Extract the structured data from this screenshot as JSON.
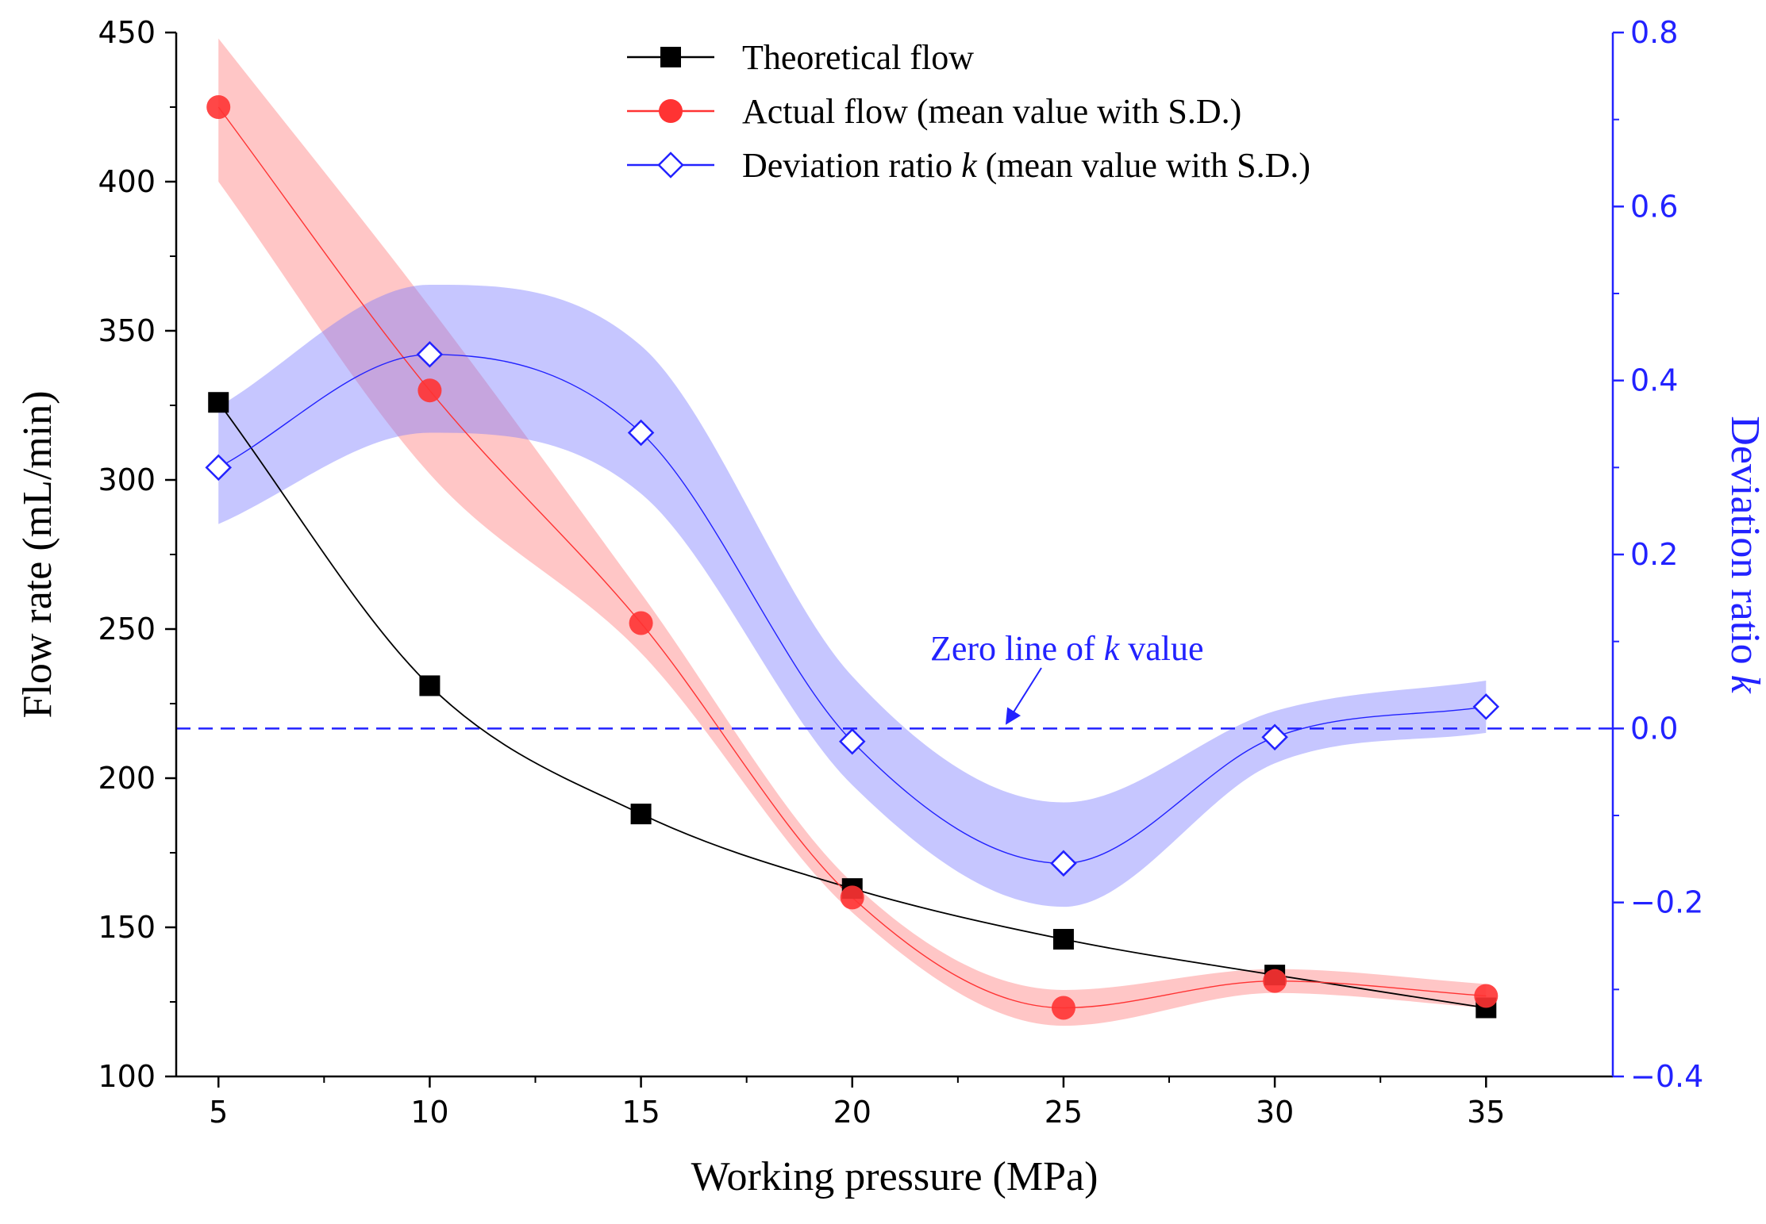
{
  "chart_data": {
    "type": "line",
    "x": [
      5,
      10,
      15,
      20,
      25,
      30,
      35
    ],
    "xlabel": "Working pressure (MPa)",
    "ylabel": "Flow rate (mL/min)",
    "y2label_main": "Deviation ratio ",
    "y2label_italic": "k",
    "xlim": [
      4,
      38
    ],
    "ylim": [
      100,
      450
    ],
    "y2lim": [
      -0.4,
      0.8
    ],
    "x_ticks": [
      5,
      10,
      15,
      20,
      25,
      30,
      35
    ],
    "y_ticks": [
      100,
      150,
      200,
      250,
      300,
      350,
      400,
      450
    ],
    "y2_ticks": [
      -0.4,
      -0.2,
      0.0,
      0.2,
      0.4,
      0.6,
      0.8
    ],
    "y_tick_labels": [
      "100",
      "150",
      "200",
      "250",
      "300",
      "350",
      "400",
      "450"
    ],
    "y2_tick_labels": [
      "−0.4",
      "−0.2",
      "0.0",
      "0.2",
      "0.4",
      "0.6",
      "0.8"
    ],
    "series": [
      {
        "name": "Theoretical flow",
        "axis": "left",
        "color": "#000000",
        "marker": "square",
        "values": [
          326,
          231,
          188,
          163,
          146,
          134,
          123
        ]
      },
      {
        "name": "Actual flow (mean value with S.D.)",
        "axis": "left",
        "color": "#ff3333",
        "band_color": "#ff7777",
        "marker": "circle",
        "values": [
          425,
          330,
          252,
          160,
          123,
          132,
          127
        ],
        "band_lower": [
          400,
          302,
          242,
          155,
          117,
          128,
          123
        ],
        "band_upper": [
          448,
          358,
          262,
          165,
          129,
          136,
          131
        ]
      },
      {
        "name": "Deviation ratio k (mean value with S.D.)",
        "legend_main": "Deviation ratio ",
        "legend_italic": "k",
        "legend_tail": " (mean value with S.D.)",
        "axis": "right",
        "color": "#2222ff",
        "band_color": "#7777ff",
        "marker": "diamond",
        "values": [
          0.3,
          0.43,
          0.34,
          -0.015,
          -0.155,
          -0.01,
          0.025
        ],
        "band_lower": [
          0.235,
          0.34,
          0.27,
          -0.065,
          -0.205,
          -0.04,
          -0.005
        ],
        "band_upper": [
          0.37,
          0.51,
          0.44,
          0.06,
          -0.085,
          0.02,
          0.055
        ]
      }
    ],
    "reference_line": {
      "axis": "right",
      "value": 0.0,
      "style": "dashed",
      "color": "#2222ff"
    },
    "annotation": {
      "text_main": "Zero line of ",
      "text_italic": "k",
      "text_tail": " value",
      "color": "#2222ff"
    },
    "legend_position": "top-center"
  }
}
